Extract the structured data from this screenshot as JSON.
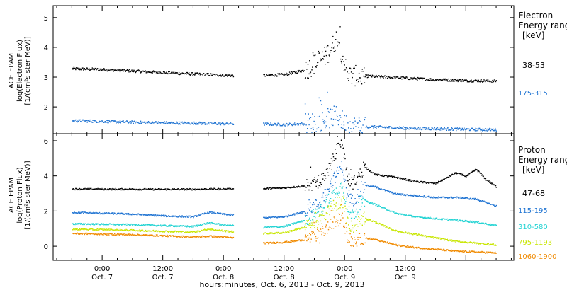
{
  "chart_data": [
    {
      "type": "scatter",
      "panel": "electron",
      "ylabel": [
        "ACE EPAM",
        "log(Electron Flux)",
        "[1/(cm²s ster MeV)]"
      ],
      "ylim": [
        1.1,
        5.4
      ],
      "yticks": [
        2,
        3,
        4,
        5
      ],
      "legend_title": [
        "Electron",
        "Energy range",
        "[keV]"
      ],
      "legend_placement": "right",
      "gaps": [
        [
          26.0,
          31.8
        ]
      ],
      "series": [
        {
          "name": "38-53",
          "color": "#000000",
          "x": [
            -6,
            0,
            6,
            12,
            18,
            24,
            26,
            32,
            36,
            40,
            42,
            44,
            45.5,
            46.5,
            47.5,
            48.5,
            49.5,
            52,
            56,
            60,
            66,
            72,
            78
          ],
          "y": [
            3.3,
            3.27,
            3.22,
            3.17,
            3.12,
            3.08,
            3.07,
            3.07,
            3.1,
            3.25,
            3.45,
            3.7,
            4.05,
            4.4,
            3.7,
            3.1,
            3.06,
            3.05,
            3.02,
            2.98,
            2.93,
            2.9,
            2.88
          ]
        },
        {
          "name": "175-315",
          "color": "#1e73d2",
          "x": [
            -6,
            0,
            6,
            12,
            18,
            24,
            26,
            32,
            36,
            40,
            42,
            44,
            45.5,
            46.5,
            47.5,
            48.5,
            49.5,
            52,
            56,
            60,
            66,
            72,
            78
          ],
          "y": [
            1.55,
            1.53,
            1.5,
            1.48,
            1.47,
            1.45,
            1.45,
            1.44,
            1.42,
            1.45,
            1.5,
            1.58,
            1.68,
            1.72,
            1.55,
            1.4,
            1.37,
            1.35,
            1.33,
            1.3,
            1.28,
            1.26,
            1.25
          ]
        }
      ]
    },
    {
      "type": "scatter",
      "panel": "proton",
      "ylabel": [
        "ACE EPAM",
        "log(Proton Flux)",
        "[1/(cm²s ster MeV)]"
      ],
      "ylim": [
        -0.8,
        6.4
      ],
      "yticks": [
        0,
        2,
        4,
        6
      ],
      "legend_title": [
        "Proton",
        "Energy range",
        "[keV]"
      ],
      "legend_placement": "right",
      "gaps": [
        [
          26.0,
          31.8
        ]
      ],
      "series": [
        {
          "name": "47-68",
          "color": "#000000",
          "x": [
            -6,
            0,
            6,
            12,
            18,
            24,
            26,
            32,
            36,
            40,
            43,
            45,
            46.5,
            47.5,
            48.5,
            49.5,
            52,
            54,
            58,
            62,
            66,
            68,
            70,
            72,
            74,
            76,
            78
          ],
          "y": [
            3.28,
            3.27,
            3.27,
            3.26,
            3.27,
            3.28,
            3.28,
            3.3,
            3.35,
            3.45,
            3.65,
            4.5,
            5.6,
            5.9,
            3.9,
            3.6,
            4.5,
            4.1,
            3.95,
            3.7,
            3.6,
            3.9,
            4.2,
            4.0,
            4.4,
            3.8,
            3.4
          ]
        },
        {
          "name": "115-195",
          "color": "#1e73d2",
          "x": [
            -6,
            0,
            6,
            12,
            18,
            21,
            24,
            26,
            32,
            36,
            40,
            43,
            45,
            46.5,
            47.5,
            48.5,
            49.5,
            52,
            54,
            58,
            62,
            66,
            70,
            74,
            78
          ],
          "y": [
            1.95,
            1.9,
            1.85,
            1.75,
            1.7,
            1.95,
            1.85,
            1.8,
            1.65,
            1.7,
            2.0,
            2.5,
            3.5,
            4.2,
            4.6,
            2.8,
            2.6,
            3.5,
            3.4,
            3.0,
            2.9,
            2.8,
            2.8,
            2.7,
            2.3
          ]
        },
        {
          "name": "310-580",
          "color": "#22d3d3",
          "x": [
            -6,
            0,
            6,
            12,
            18,
            21,
            24,
            26,
            32,
            36,
            40,
            43,
            45,
            46.5,
            47.5,
            48.5,
            49.5,
            52,
            54,
            58,
            62,
            66,
            70,
            74,
            78
          ],
          "y": [
            1.3,
            1.28,
            1.25,
            1.2,
            1.15,
            1.35,
            1.25,
            1.2,
            1.1,
            1.15,
            1.5,
            2.0,
            2.8,
            3.2,
            3.6,
            2.0,
            1.8,
            2.6,
            2.4,
            1.9,
            1.7,
            1.6,
            1.5,
            1.4,
            1.2
          ]
        },
        {
          "name": "795-1193",
          "color": "#c8e600",
          "x": [
            -6,
            0,
            6,
            12,
            18,
            21,
            24,
            26,
            32,
            36,
            40,
            43,
            45,
            46.5,
            47.5,
            48.5,
            49.5,
            52,
            54,
            58,
            62,
            66,
            70,
            74,
            78
          ],
          "y": [
            1.0,
            0.97,
            0.93,
            0.88,
            0.83,
            1.0,
            0.9,
            0.85,
            0.75,
            0.8,
            1.1,
            1.5,
            2.1,
            2.4,
            2.7,
            1.3,
            1.1,
            1.6,
            1.4,
            0.9,
            0.7,
            0.5,
            0.3,
            0.2,
            0.1
          ]
        },
        {
          "name": "1060-1900",
          "color": "#f08a00",
          "x": [
            -6,
            0,
            6,
            12,
            18,
            21,
            24,
            26,
            32,
            36,
            40,
            43,
            45,
            46.5,
            47.5,
            48.5,
            49.5,
            52,
            54,
            58,
            62,
            66,
            70,
            74,
            78
          ],
          "y": [
            0.75,
            0.72,
            0.68,
            0.62,
            0.55,
            0.6,
            0.55,
            0.5,
            0.2,
            0.25,
            0.4,
            0.7,
            1.2,
            1.5,
            1.7,
            0.5,
            0.3,
            0.5,
            0.4,
            0.1,
            -0.05,
            -0.15,
            -0.25,
            -0.3,
            -0.35
          ]
        }
      ]
    }
  ],
  "xaxis": {
    "xlim": [
      -9.7,
      81.5
    ],
    "label": "hours:minutes, Oct.  6, 2013 - Oct.  9, 2013",
    "major_ticks": [
      {
        "x": 0,
        "time": "0:00",
        "date": "Oct. 7"
      },
      {
        "x": 12,
        "time": "12:00",
        "date": "Oct. 7"
      },
      {
        "x": 24,
        "time": "0:00",
        "date": "Oct. 8"
      },
      {
        "x": 36,
        "time": "12:00",
        "date": "Oct. 8"
      },
      {
        "x": 48,
        "time": "0:00",
        "date": "Oct. 9"
      },
      {
        "x": 60,
        "time": "12:00",
        "date": "Oct. 9"
      }
    ],
    "minor_tick_step": 3
  }
}
